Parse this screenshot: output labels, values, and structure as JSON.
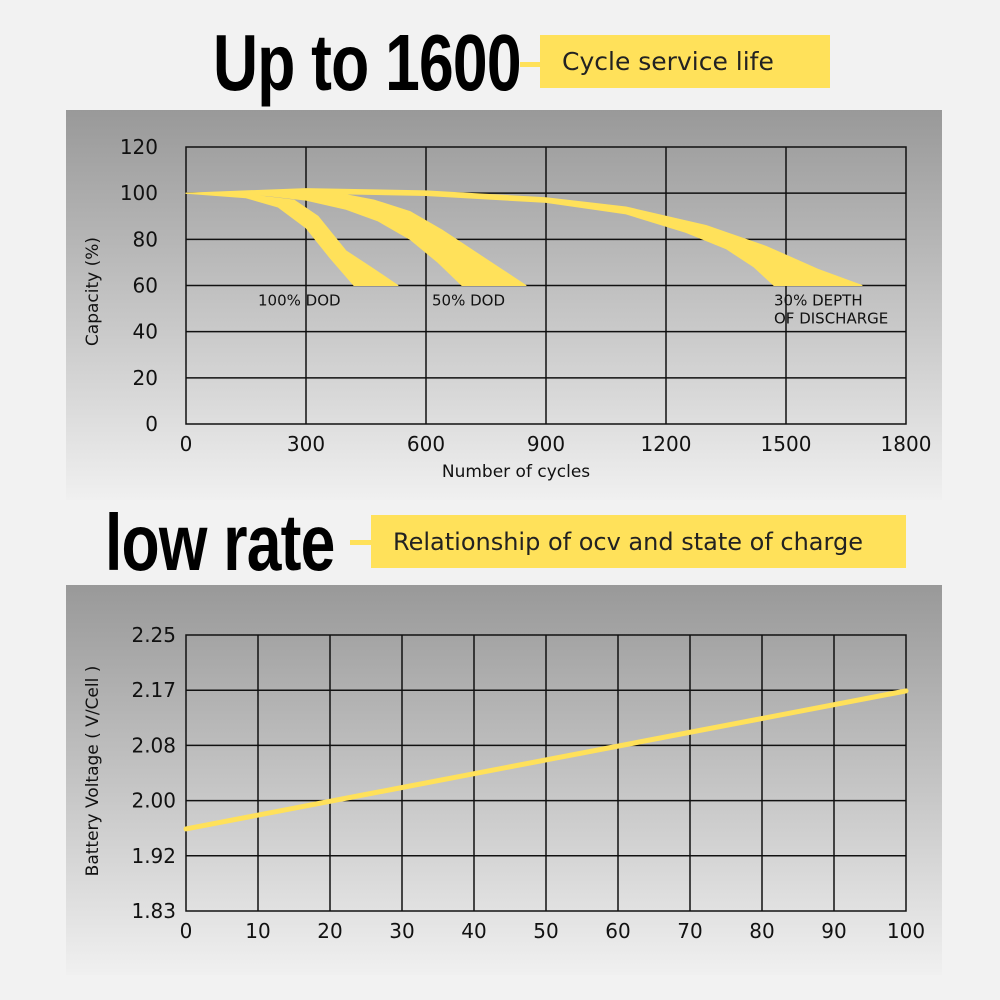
{
  "header1": {
    "title": "Up to 1600",
    "tag": "Cycle service life"
  },
  "header2": {
    "title": "low rate",
    "tag": "Relationship of ocv and state of charge"
  },
  "colors": {
    "accent": "#ffe15a",
    "grid": "#111111",
    "panel_top": "#999999",
    "panel_bottom": "#f0f0f0"
  },
  "chart_data": [
    {
      "type": "area",
      "xlabel": "Number of cycles",
      "ylabel": "Capacity  (%)",
      "xlim": [
        0,
        1800
      ],
      "ylim": [
        0,
        120
      ],
      "x_ticks": [
        "0",
        "300",
        "600",
        "900",
        "1200",
        "1500",
        "1800"
      ],
      "y_ticks": [
        "120",
        "100",
        "80",
        "60",
        "40",
        "20",
        "0"
      ],
      "grid": true,
      "series": [
        {
          "name": "100% DOD",
          "label_lines": [
            "100% DOD"
          ],
          "upper": [
            [
              0,
              100
            ],
            [
              150,
              99.5
            ],
            [
              270,
              97
            ],
            [
              330,
              90
            ],
            [
              400,
              75
            ],
            [
              470,
              67
            ],
            [
              530,
              60
            ]
          ],
          "lower": [
            [
              0,
              100
            ],
            [
              150,
              98
            ],
            [
              230,
              94
            ],
            [
              300,
              85
            ],
            [
              360,
              72
            ],
            [
              420,
              60
            ]
          ]
        },
        {
          "name": "50% DOD",
          "label_lines": [
            "50% DOD"
          ],
          "upper": [
            [
              0,
              100
            ],
            [
              200,
              101
            ],
            [
              350,
              101
            ],
            [
              470,
              97
            ],
            [
              560,
              92
            ],
            [
              640,
              84
            ],
            [
              710,
              76
            ],
            [
              780,
              68
            ],
            [
              850,
              60
            ]
          ],
          "lower": [
            [
              0,
              100
            ],
            [
              200,
              99
            ],
            [
              300,
              97
            ],
            [
              400,
              93
            ],
            [
              480,
              88
            ],
            [
              560,
              80
            ],
            [
              630,
              70
            ],
            [
              690,
              60
            ]
          ]
        },
        {
          "name": "30% DEPTH OF DISCHARGE",
          "label_lines": [
            "30% DEPTH",
            "OF DISCHARGE"
          ],
          "upper": [
            [
              0,
              100
            ],
            [
              300,
              102
            ],
            [
              600,
              101
            ],
            [
              900,
              98
            ],
            [
              1100,
              94
            ],
            [
              1300,
              86
            ],
            [
              1450,
              77
            ],
            [
              1580,
              67
            ],
            [
              1690,
              60
            ]
          ],
          "lower": [
            [
              0,
              100
            ],
            [
              300,
              100
            ],
            [
              600,
              99
            ],
            [
              900,
              96
            ],
            [
              1100,
              91
            ],
            [
              1250,
              83
            ],
            [
              1350,
              76
            ],
            [
              1420,
              68
            ],
            [
              1470,
              60
            ]
          ]
        }
      ]
    },
    {
      "type": "line",
      "xlabel": "",
      "ylabel": "Battery Voltage ( V/Cell )",
      "xlim": [
        0,
        100
      ],
      "ylim": [
        1.83,
        2.25
      ],
      "x_ticks": [
        "0",
        "10",
        "20",
        "30",
        "40",
        "50",
        "60",
        "70",
        "80",
        "90",
        "100"
      ],
      "y_ticks": [
        "2.25",
        "2.17",
        "2.08",
        "2.00",
        "1.92",
        "1.83"
      ],
      "grid": true,
      "series": [
        {
          "x": [
            0,
            100
          ],
          "y": [
            1.955,
            2.165
          ]
        }
      ]
    }
  ]
}
